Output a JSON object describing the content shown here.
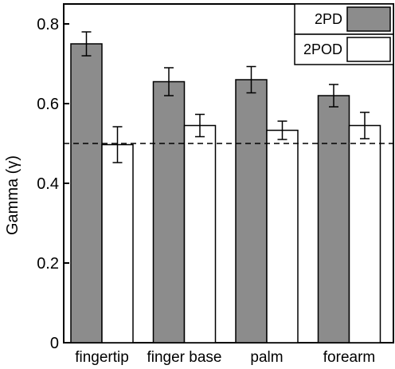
{
  "chart_data": {
    "type": "bar",
    "categories": [
      "fingertip",
      "finger base",
      "palm",
      "forearm"
    ],
    "series": [
      {
        "name": "2PD",
        "values": [
          0.75,
          0.655,
          0.66,
          0.62
        ],
        "errors": [
          0.03,
          0.035,
          0.033,
          0.028
        ],
        "color": "#8c8c8c"
      },
      {
        "name": "2POD",
        "values": [
          0.497,
          0.545,
          0.533,
          0.545
        ],
        "errors": [
          0.045,
          0.028,
          0.023,
          0.033
        ],
        "color": "#ffffff"
      }
    ],
    "ylabel": "Gamma (γ)",
    "ylim": [
      0,
      0.8
    ],
    "yticks": [
      "0",
      "0.2",
      "0.4",
      "0.6",
      "0.8"
    ],
    "reference_line": {
      "value": 0.5,
      "style": "dashed"
    },
    "grid": false,
    "legend_position": "top-right"
  }
}
